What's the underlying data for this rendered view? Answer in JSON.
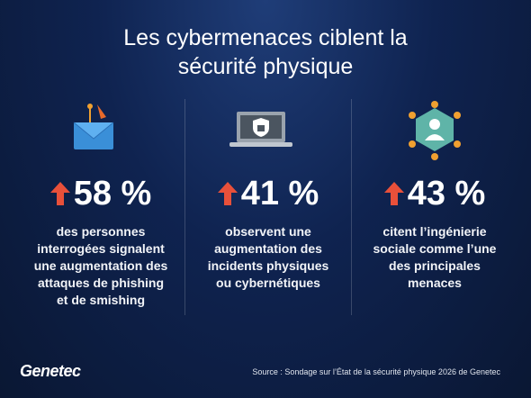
{
  "header": {
    "title_lines": [
      "Les cybermenaces ciblent la",
      "sécurité physique"
    ]
  },
  "stats": [
    {
      "value": "58 %",
      "lines": [
        "des personnes",
        "interrogées signalent",
        "une augmentation des",
        "attaques de phishing",
        "et de smishing"
      ]
    },
    {
      "value": "41 %",
      "lines": [
        "observent une",
        "augmentation des",
        "incidents physiques",
        "ou cybernétiques"
      ]
    },
    {
      "value": "43 %",
      "lines": [
        "citent l’ingénierie",
        "sociale comme l’une",
        "des principales",
        "menaces"
      ]
    }
  ],
  "footer": {
    "logo": "Genetec",
    "source": "Source : Sondage sur l’État de la sécurité physique 2026 de Genetec"
  }
}
